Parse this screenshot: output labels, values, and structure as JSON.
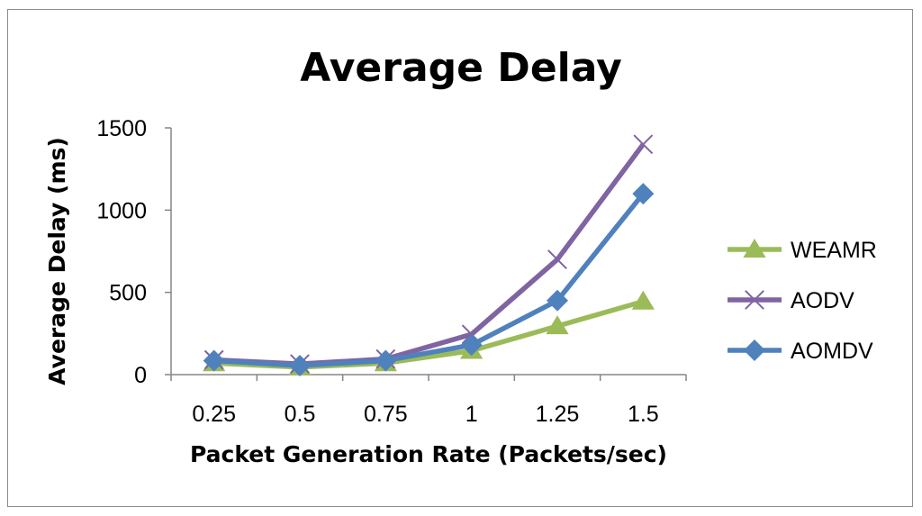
{
  "chart_data": {
    "type": "line",
    "title": "Average Delay",
    "xlabel": "Packet Generation Rate (Packets/sec)",
    "ylabel": "Average Delay (ms)",
    "categories": [
      "0.25",
      "0.5",
      "0.75",
      "1",
      "1.25",
      "1.5"
    ],
    "ylim": [
      0,
      1500
    ],
    "yticks": [
      "0",
      "500",
      "1000",
      "1500"
    ],
    "grid": false,
    "legend_position": "right",
    "series": [
      {
        "name": "WEAMR",
        "color": "#9BBB59",
        "marker": "triangle",
        "values": [
          70,
          45,
          70,
          145,
          295,
          445
        ]
      },
      {
        "name": "AODV",
        "color": "#8064A2",
        "marker": "x",
        "values": [
          90,
          65,
          95,
          245,
          700,
          1400
        ]
      },
      {
        "name": "AOMDV",
        "color": "#4F81BD",
        "marker": "diamond",
        "values": [
          85,
          55,
          85,
          180,
          450,
          1100
        ]
      }
    ]
  }
}
